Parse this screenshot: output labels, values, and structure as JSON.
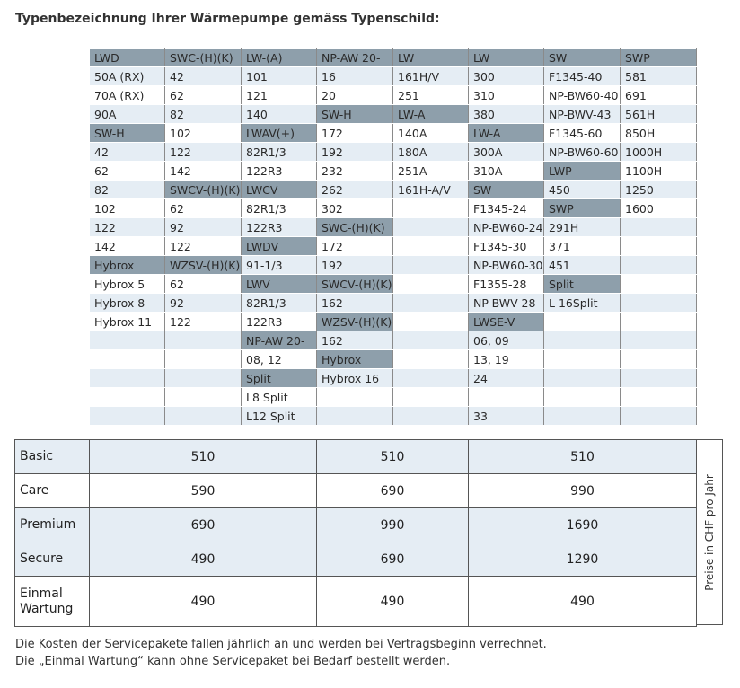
{
  "title": "Typenbezeichnung Ihrer Wärmepumpe gemäss Typenschild:",
  "model_table": {
    "rows": [
      [
        {
          "t": "LWD",
          "s": "h"
        },
        {
          "t": "SWC-(H)(K)",
          "s": "h"
        },
        {
          "t": "LW-(A)",
          "s": "h"
        },
        {
          "t": "NP-AW 20-",
          "s": "h"
        },
        {
          "t": "LW",
          "s": "h"
        },
        {
          "t": "LW",
          "s": "h"
        },
        {
          "t": "SW",
          "s": "h"
        },
        {
          "t": "SWP",
          "s": "h"
        }
      ],
      [
        {
          "t": "50A (RX)",
          "s": "l"
        },
        {
          "t": "42",
          "s": "l"
        },
        {
          "t": "101",
          "s": "l"
        },
        {
          "t": "16",
          "s": "l"
        },
        {
          "t": "161H/V",
          "s": "l"
        },
        {
          "t": "300",
          "s": "l"
        },
        {
          "t": "F1345-40",
          "s": "l"
        },
        {
          "t": "581",
          "s": "l"
        }
      ],
      [
        {
          "t": "70A (RX)",
          "s": "w"
        },
        {
          "t": "62",
          "s": "w"
        },
        {
          "t": "121",
          "s": "w"
        },
        {
          "t": "20",
          "s": "w"
        },
        {
          "t": "251",
          "s": "w"
        },
        {
          "t": "310",
          "s": "w"
        },
        {
          "t": "NP-BW60-40",
          "s": "w"
        },
        {
          "t": "691",
          "s": "w"
        }
      ],
      [
        {
          "t": "90A",
          "s": "l"
        },
        {
          "t": "82",
          "s": "l"
        },
        {
          "t": "140",
          "s": "l"
        },
        {
          "t": "SW-H",
          "s": "h"
        },
        {
          "t": "LW-A",
          "s": "h"
        },
        {
          "t": "380",
          "s": "l"
        },
        {
          "t": "NP-BWV-43",
          "s": "l"
        },
        {
          "t": "561H",
          "s": "l"
        }
      ],
      [
        {
          "t": "SW-H",
          "s": "h"
        },
        {
          "t": "102",
          "s": "w"
        },
        {
          "t": "LWAV(+)",
          "s": "h"
        },
        {
          "t": "172",
          "s": "w"
        },
        {
          "t": "140A",
          "s": "w"
        },
        {
          "t": "LW-A",
          "s": "h"
        },
        {
          "t": "F1345-60",
          "s": "w"
        },
        {
          "t": "850H",
          "s": "w"
        }
      ],
      [
        {
          "t": "42",
          "s": "l"
        },
        {
          "t": "122",
          "s": "l"
        },
        {
          "t": "82R1/3",
          "s": "l"
        },
        {
          "t": "192",
          "s": "l"
        },
        {
          "t": "180A",
          "s": "l"
        },
        {
          "t": "300A",
          "s": "l"
        },
        {
          "t": "NP-BW60-60",
          "s": "l"
        },
        {
          "t": "1000H",
          "s": "l"
        }
      ],
      [
        {
          "t": "62",
          "s": "w"
        },
        {
          "t": "142",
          "s": "w"
        },
        {
          "t": "122R3",
          "s": "w"
        },
        {
          "t": "232",
          "s": "w"
        },
        {
          "t": "251A",
          "s": "w"
        },
        {
          "t": "310A",
          "s": "w"
        },
        {
          "t": "LWP",
          "s": "h"
        },
        {
          "t": "1100H",
          "s": "w"
        }
      ],
      [
        {
          "t": "82",
          "s": "l"
        },
        {
          "t": "SWCV-(H)(K)",
          "s": "h"
        },
        {
          "t": "LWCV",
          "s": "h"
        },
        {
          "t": "262",
          "s": "l"
        },
        {
          "t": "161H-A/V",
          "s": "l"
        },
        {
          "t": "SW",
          "s": "h"
        },
        {
          "t": "450",
          "s": "l"
        },
        {
          "t": "1250",
          "s": "l"
        }
      ],
      [
        {
          "t": "102",
          "s": "w"
        },
        {
          "t": "62",
          "s": "w"
        },
        {
          "t": "82R1/3",
          "s": "w"
        },
        {
          "t": "302",
          "s": "w"
        },
        {
          "t": "",
          "s": "w"
        },
        {
          "t": "F1345-24",
          "s": "w"
        },
        {
          "t": "SWP",
          "s": "h"
        },
        {
          "t": "1600",
          "s": "w"
        }
      ],
      [
        {
          "t": "122",
          "s": "l"
        },
        {
          "t": "92",
          "s": "l"
        },
        {
          "t": "122R3",
          "s": "l"
        },
        {
          "t": "SWC-(H)(K)",
          "s": "h"
        },
        {
          "t": "",
          "s": "l"
        },
        {
          "t": "NP-BW60-24",
          "s": "l"
        },
        {
          "t": "291H",
          "s": "l"
        },
        {
          "t": "",
          "s": "l"
        }
      ],
      [
        {
          "t": "142",
          "s": "w"
        },
        {
          "t": "122",
          "s": "w"
        },
        {
          "t": "LWDV",
          "s": "h"
        },
        {
          "t": "172",
          "s": "w"
        },
        {
          "t": "",
          "s": "w"
        },
        {
          "t": "F1345-30",
          "s": "w"
        },
        {
          "t": "371",
          "s": "w"
        },
        {
          "t": "",
          "s": "w"
        }
      ],
      [
        {
          "t": "Hybrox",
          "s": "h"
        },
        {
          "t": "WZSV-(H)(K)",
          "s": "h"
        },
        {
          "t": "91-1/3",
          "s": "l"
        },
        {
          "t": "192",
          "s": "l"
        },
        {
          "t": "",
          "s": "l"
        },
        {
          "t": "NP-BW60-30",
          "s": "l"
        },
        {
          "t": "451",
          "s": "l"
        },
        {
          "t": "",
          "s": "l"
        }
      ],
      [
        {
          "t": "Hybrox 5",
          "s": "w"
        },
        {
          "t": "62",
          "s": "w"
        },
        {
          "t": "LWV",
          "s": "h"
        },
        {
          "t": "SWCV-(H)(K)",
          "s": "h"
        },
        {
          "t": "",
          "s": "w"
        },
        {
          "t": "F1355-28",
          "s": "w"
        },
        {
          "t": "Split",
          "s": "h"
        },
        {
          "t": "",
          "s": "w"
        }
      ],
      [
        {
          "t": "Hybrox 8",
          "s": "l"
        },
        {
          "t": "92",
          "s": "l"
        },
        {
          "t": "82R1/3",
          "s": "l"
        },
        {
          "t": "162",
          "s": "l"
        },
        {
          "t": "",
          "s": "l"
        },
        {
          "t": "NP-BWV-28",
          "s": "l"
        },
        {
          "t": "L 16Split",
          "s": "l"
        },
        {
          "t": "",
          "s": "l"
        }
      ],
      [
        {
          "t": "Hybrox 11",
          "s": "w"
        },
        {
          "t": "122",
          "s": "w"
        },
        {
          "t": "122R3",
          "s": "w"
        },
        {
          "t": "WZSV-(H)(K)",
          "s": "h"
        },
        {
          "t": "",
          "s": "w"
        },
        {
          "t": "LWSE-V",
          "s": "h"
        },
        {
          "t": "",
          "s": "w"
        },
        {
          "t": "",
          "s": "w"
        }
      ],
      [
        {
          "t": "",
          "s": "l"
        },
        {
          "t": "",
          "s": "l"
        },
        {
          "t": "NP-AW 20-",
          "s": "h"
        },
        {
          "t": "162",
          "s": "l"
        },
        {
          "t": "",
          "s": "l"
        },
        {
          "t": "06, 09",
          "s": "l"
        },
        {
          "t": "",
          "s": "l"
        },
        {
          "t": "",
          "s": "l"
        }
      ],
      [
        {
          "t": "",
          "s": "w"
        },
        {
          "t": "",
          "s": "w"
        },
        {
          "t": "08, 12",
          "s": "w"
        },
        {
          "t": "Hybrox",
          "s": "h"
        },
        {
          "t": "",
          "s": "w"
        },
        {
          "t": "13, 19",
          "s": "w"
        },
        {
          "t": "",
          "s": "w"
        },
        {
          "t": "",
          "s": "w"
        }
      ],
      [
        {
          "t": "",
          "s": "l"
        },
        {
          "t": "",
          "s": "l"
        },
        {
          "t": "Split",
          "s": "h"
        },
        {
          "t": "Hybrox 16",
          "s": "l"
        },
        {
          "t": "",
          "s": "l"
        },
        {
          "t": "24",
          "s": "l"
        },
        {
          "t": "",
          "s": "l"
        },
        {
          "t": "",
          "s": "l"
        }
      ],
      [
        {
          "t": "",
          "s": "w"
        },
        {
          "t": "",
          "s": "w"
        },
        {
          "t": "L8 Split",
          "s": "w"
        },
        {
          "t": "",
          "s": "w"
        },
        {
          "t": "",
          "s": "w"
        },
        {
          "t": "",
          "s": "w"
        },
        {
          "t": "",
          "s": "w"
        },
        {
          "t": "",
          "s": "w"
        }
      ],
      [
        {
          "t": "",
          "s": "l"
        },
        {
          "t": "",
          "s": "l"
        },
        {
          "t": "L12 Split",
          "s": "l"
        },
        {
          "t": "",
          "s": "l"
        },
        {
          "t": "",
          "s": "l"
        },
        {
          "t": "33",
          "s": "l"
        },
        {
          "t": "",
          "s": "l"
        },
        {
          "t": "",
          "s": "l"
        }
      ]
    ]
  },
  "price_table": {
    "rows": [
      {
        "label": "Basic",
        "values": [
          "510",
          "510",
          "510"
        ],
        "shade": "light"
      },
      {
        "label": "Care",
        "values": [
          "590",
          "690",
          "990"
        ],
        "shade": "white"
      },
      {
        "label": "Premium",
        "values": [
          "690",
          "990",
          "1690"
        ],
        "shade": "light"
      },
      {
        "label": "Secure",
        "values": [
          "490",
          "690",
          "1290"
        ],
        "shade": "light"
      },
      {
        "label": "Einmal\nWartung",
        "values": [
          "490",
          "490",
          "490"
        ],
        "shade": "white"
      }
    ],
    "side_note": "Preise in CHF pro Jahr"
  },
  "footnotes": [
    "Die Kosten der Servicepakete fallen jährlich an und werden bei Vertragsbeginn verrechnet.",
    "Die „Einmal Wartung“ kann ohne Servicepaket bei Bedarf bestellt werden."
  ],
  "colors": {
    "header": "#8e9fab",
    "light": "#e5edf4",
    "white": "#ffffff"
  }
}
